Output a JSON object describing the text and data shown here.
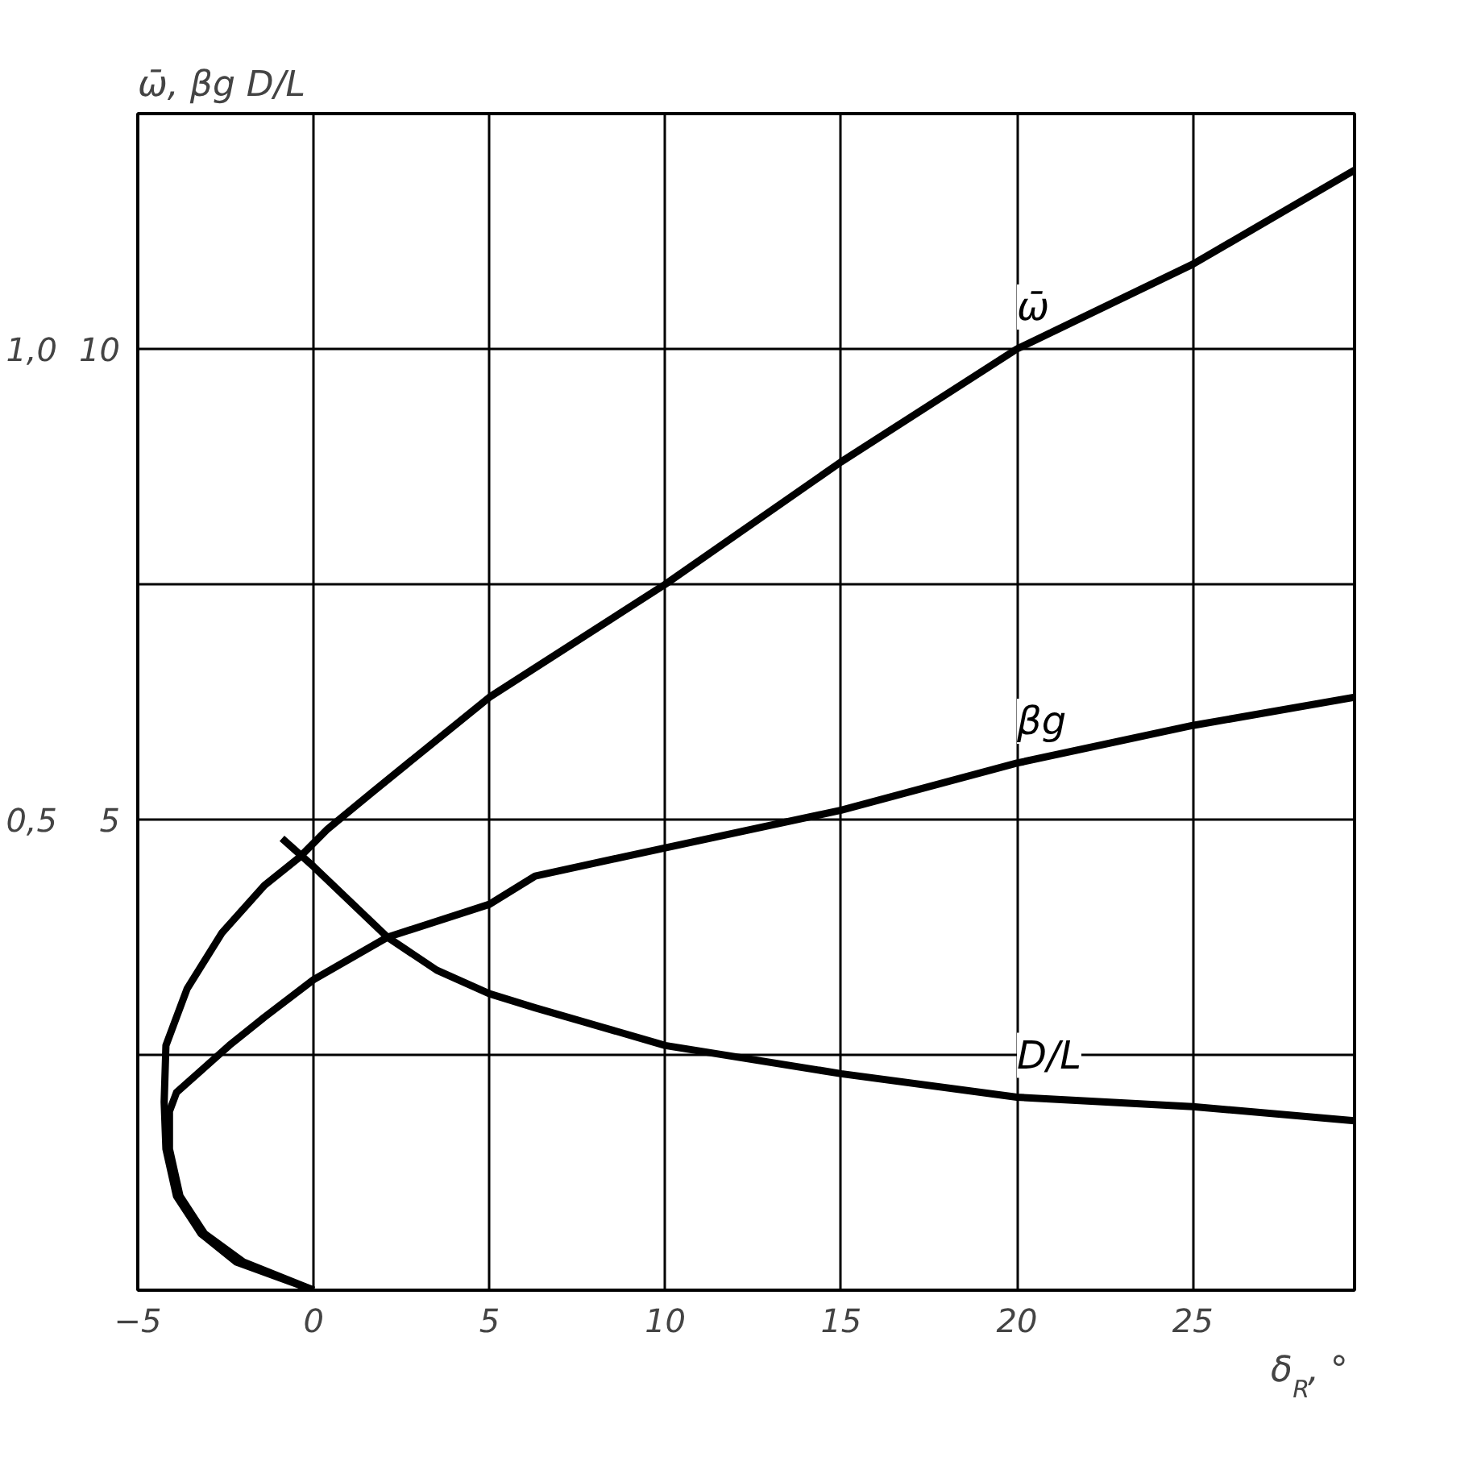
{
  "chart_data": {
    "type": "line",
    "xlabel": "δ$_{R}$, °",
    "ylabel": "ω̄,",
    "y2label": "βg D/L",
    "xlim": [
      -5,
      29.6
    ],
    "xticks": [
      -5,
      0,
      5,
      10,
      15,
      20,
      25
    ],
    "ylim": [
      0,
      1.25
    ],
    "yticks": [
      {
        "value": 0.25,
        "label": null
      },
      {
        "value": 0.5,
        "label": "0,5"
      },
      {
        "value": 0.75,
        "label": null
      },
      {
        "value": 1.0,
        "label": "1,0"
      }
    ],
    "y2lim": [
      0,
      12.5
    ],
    "y2ticks": [
      5,
      10
    ],
    "grid": true,
    "line_style": "solid",
    "series": [
      {
        "name": "ω̄",
        "color": "#000000",
        "x": [
          0,
          -2.2,
          -3.2,
          -3.9,
          -4.2,
          -4.25,
          -4.2,
          -3.6,
          -2.6,
          -1.4,
          -0.4,
          0.4,
          1.7,
          5,
          10,
          15,
          20,
          25,
          29.6
        ],
        "values": [
          0,
          0.03,
          0.06,
          0.1,
          0.15,
          0.2,
          0.26,
          0.32,
          0.38,
          0.43,
          0.46,
          0.49,
          0.53,
          0.63,
          0.75,
          0.88,
          1.0,
          1.09,
          1.19
        ]
      },
      {
        "name": "βg",
        "axis": "y2",
        "color": "#000000",
        "x": [
          0,
          -2.0,
          -3.1,
          -3.8,
          -4.1,
          -4.1,
          -3.9,
          -2.4,
          -1.4,
          0,
          2.1,
          5,
          6.3,
          10,
          15,
          20,
          25,
          29.6
        ],
        "values": [
          0,
          0.3,
          0.6,
          1.0,
          1.5,
          1.9,
          2.1,
          2.6,
          2.9,
          3.3,
          3.75,
          4.1,
          4.4,
          4.7,
          5.1,
          5.6,
          6.0,
          6.3
        ]
      },
      {
        "name": "D/L",
        "axis": "y2",
        "color": "#000000",
        "x": [
          -0.9,
          0,
          2.1,
          3.5,
          5,
          6.3,
          10,
          15,
          20,
          25,
          29.6
        ],
        "values": [
          4.8,
          4.5,
          3.75,
          3.4,
          3.15,
          3.0,
          2.6,
          2.3,
          2.05,
          1.95,
          1.8
        ]
      }
    ]
  }
}
